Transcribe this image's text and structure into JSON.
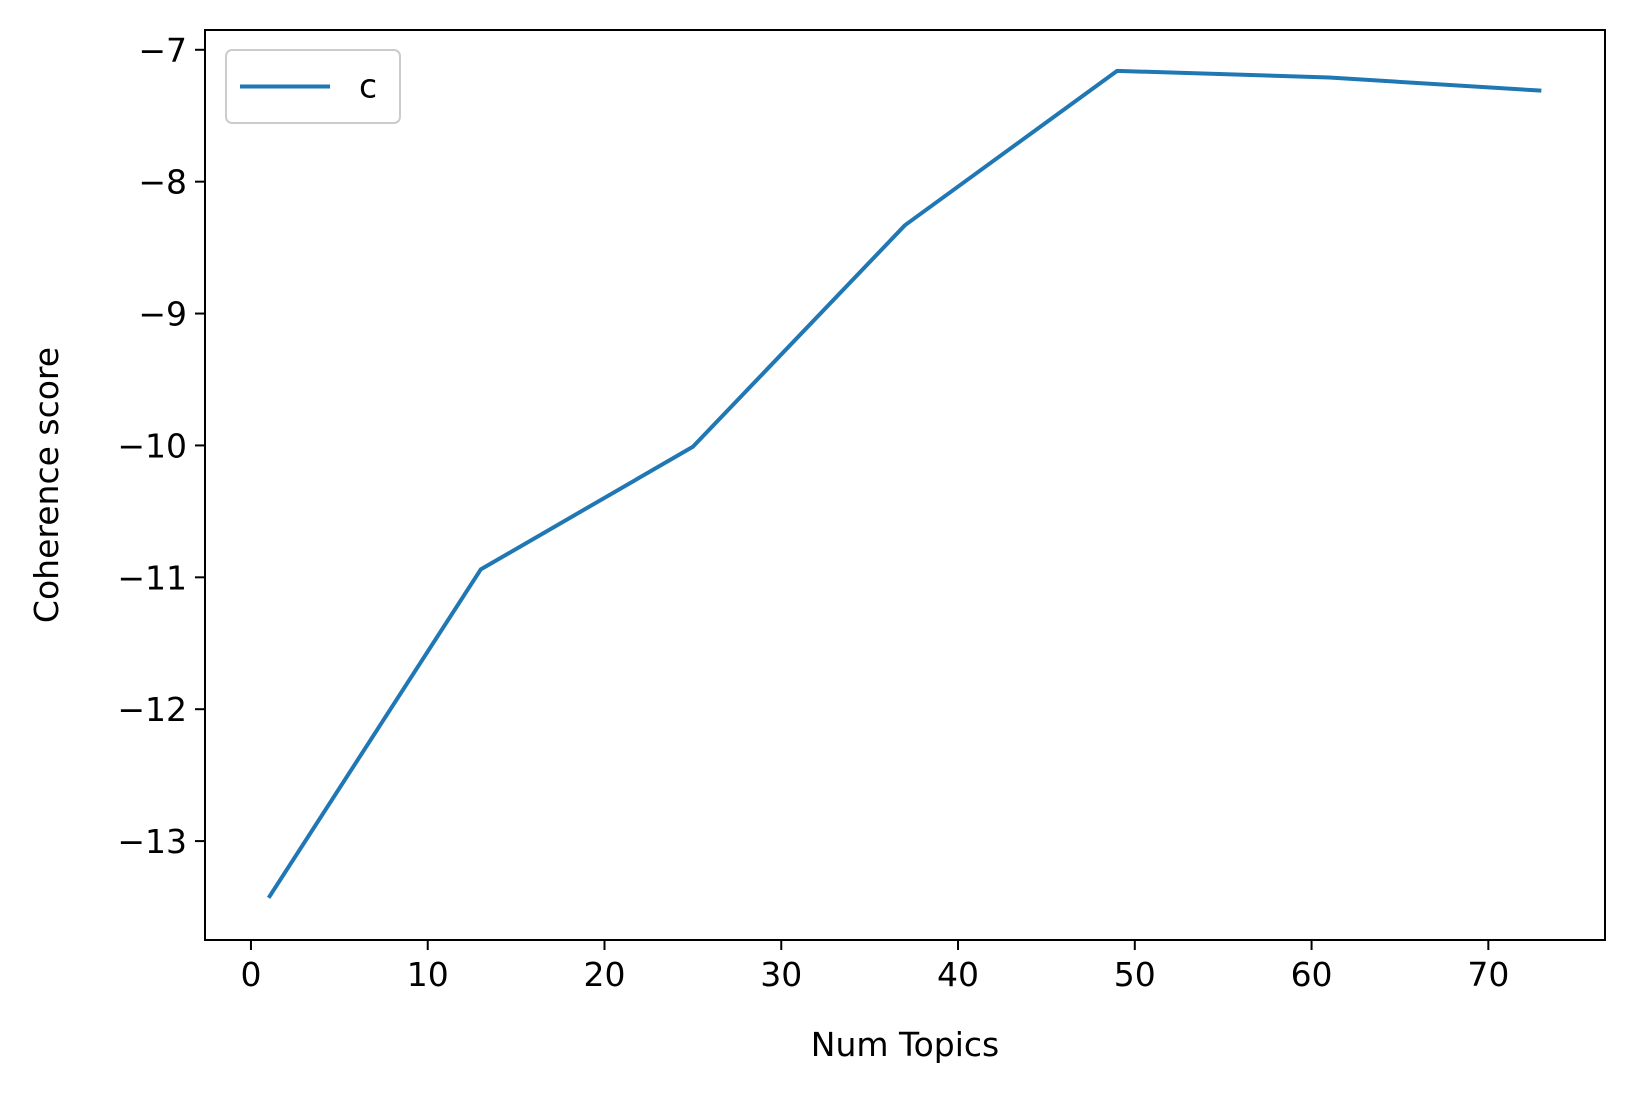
{
  "chart_data": {
    "type": "line",
    "title": "",
    "xlabel": "Num Topics",
    "ylabel": "Coherence score",
    "x": [
      1,
      13,
      25,
      37,
      49,
      61,
      73
    ],
    "series": [
      {
        "name": "c",
        "color": "#1f77b4",
        "values": [
          -13.43,
          -10.94,
          -10.01,
          -8.33,
          -7.16,
          -7.21,
          -7.31
        ]
      }
    ],
    "xlim": [
      -2.6,
      76.6
    ],
    "ylim": [
      -13.75,
      -6.85
    ],
    "xticks": [
      0,
      10,
      20,
      30,
      40,
      50,
      60,
      70
    ],
    "xtick_labels": [
      "0",
      "10",
      "20",
      "30",
      "40",
      "50",
      "60",
      "70"
    ],
    "yticks": [
      -13,
      -12,
      -11,
      -10,
      -9,
      -8,
      -7
    ],
    "ytick_labels": [
      "−13",
      "−12",
      "−11",
      "−10",
      "−9",
      "−8",
      "−7"
    ],
    "grid": false,
    "legend": "upper left"
  }
}
